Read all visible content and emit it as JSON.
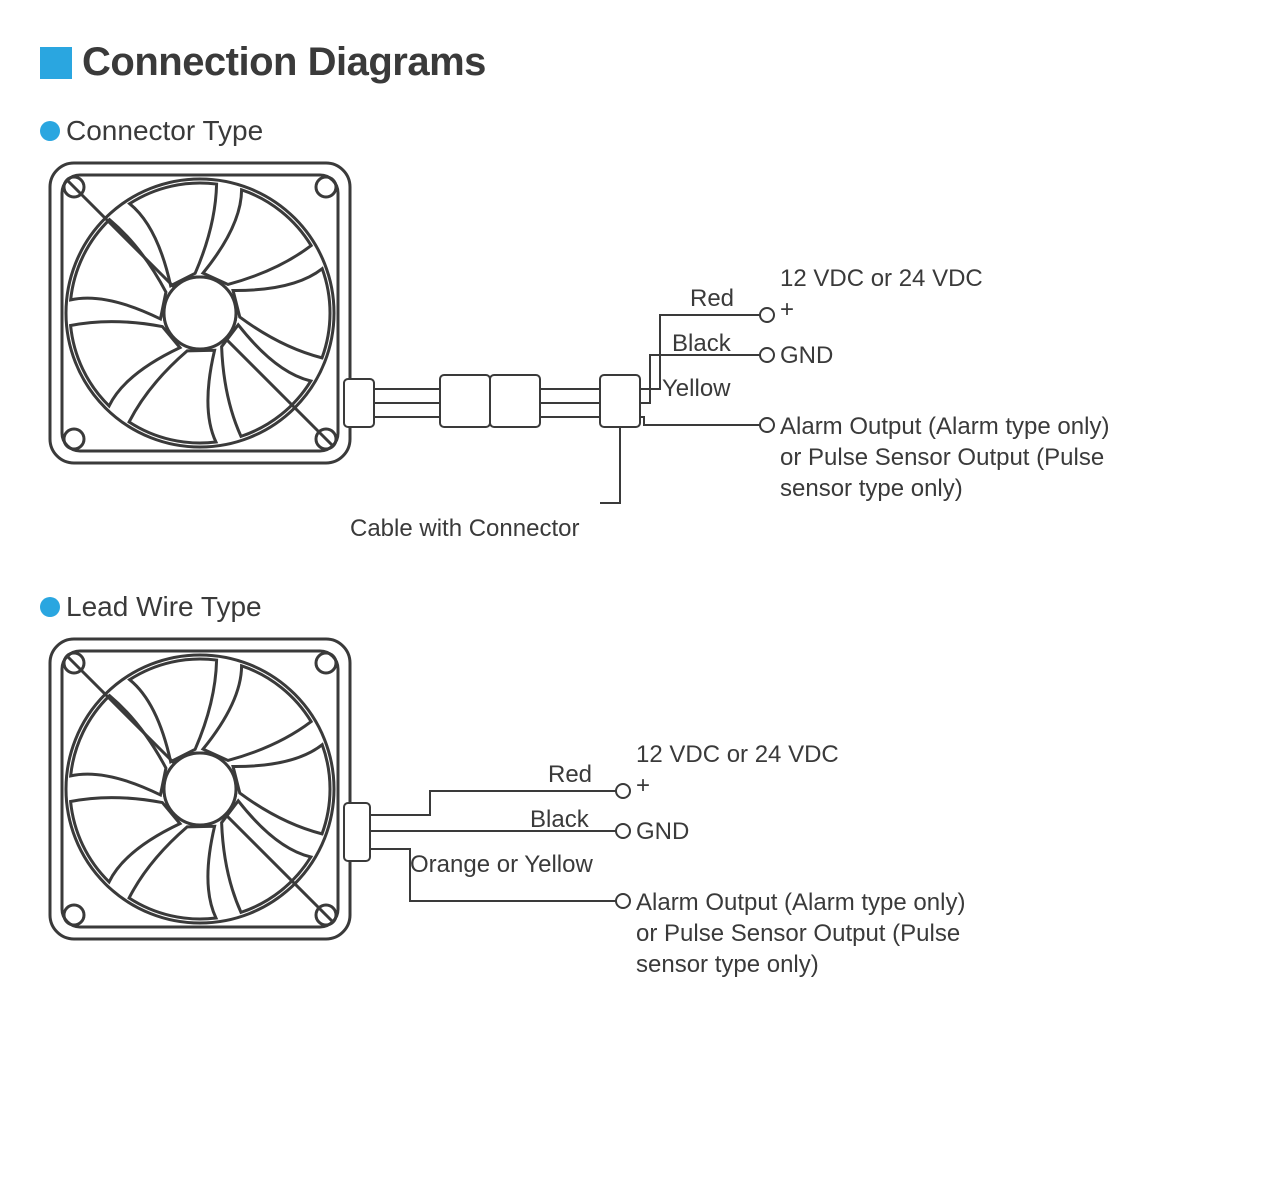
{
  "colors": {
    "accent": "#2aa6e0",
    "stroke": "#3a3a3a",
    "text": "#3a3a3a",
    "bg": "#ffffff"
  },
  "title": "Connection Diagrams",
  "sections": [
    {
      "heading": "Connector Type",
      "wires": [
        {
          "color_label": "Red",
          "desc_lines": [
            "12 VDC or 24 VDC",
            "+"
          ]
        },
        {
          "color_label": "Black",
          "desc_lines": [
            "GND"
          ]
        },
        {
          "color_label": "Yellow",
          "desc_lines": [
            "Alarm Output (Alarm type only)",
            "or Pulse Sensor Output (Pulse",
            "sensor type only)"
          ]
        }
      ],
      "cable_note": "Cable with Connector",
      "has_connector": true
    },
    {
      "heading": "Lead Wire Type",
      "wires": [
        {
          "color_label": "Red",
          "desc_lines": [
            "12 VDC or 24 VDC",
            "+"
          ]
        },
        {
          "color_label": "Black",
          "desc_lines": [
            "GND"
          ]
        },
        {
          "color_label": "Orange or Yellow",
          "desc_lines": [
            "Alarm Output (Alarm type only)",
            "or Pulse Sensor Output (Pulse",
            "sensor type only)"
          ]
        }
      ],
      "has_connector": false
    }
  ],
  "fan": {
    "size": 300,
    "corner_radius": 24,
    "hole_radius": 10,
    "stroke_width": 3
  },
  "wire_geom": {
    "terminal_r": 7,
    "line_w": 2
  },
  "font": {
    "title_size": 40,
    "heading_size": 28,
    "label_size": 24
  }
}
